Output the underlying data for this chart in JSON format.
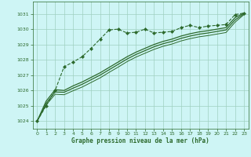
{
  "title": "Graphe pression niveau de la mer (hPa)",
  "background_color": "#cef5f5",
  "grid_color": "#a0d0c0",
  "line_color": "#2d6a2d",
  "xlim": [
    -0.5,
    23.5
  ],
  "ylim": [
    1023.5,
    1031.8
  ],
  "yticks": [
    1024,
    1025,
    1026,
    1027,
    1028,
    1029,
    1030,
    1031
  ],
  "xticks": [
    0,
    1,
    2,
    3,
    4,
    5,
    6,
    7,
    8,
    9,
    10,
    11,
    12,
    13,
    14,
    15,
    16,
    17,
    18,
    19,
    20,
    21,
    22,
    23
  ],
  "series": [
    {
      "x": [
        0,
        1,
        2,
        3,
        4,
        5,
        6,
        7,
        8,
        9,
        10,
        11,
        12,
        13,
        14,
        15,
        16,
        17,
        18,
        19,
        20,
        21,
        22,
        23
      ],
      "y": [
        1024.0,
        1025.0,
        1026.0,
        1027.55,
        1027.85,
        1028.2,
        1028.75,
        1029.35,
        1029.95,
        1030.0,
        1029.75,
        1029.8,
        1030.0,
        1029.75,
        1029.8,
        1029.85,
        1030.1,
        1030.25,
        1030.1,
        1030.2,
        1030.25,
        1030.3,
        1030.95,
        1031.05
      ],
      "marker": "D",
      "markersize": 2.0,
      "linewidth": 0.8,
      "linestyle": "--"
    },
    {
      "x": [
        0,
        1,
        2,
        3,
        4,
        5,
        6,
        7,
        8,
        9,
        10,
        11,
        12,
        13,
        14,
        15,
        16,
        17,
        18,
        19,
        20,
        21,
        22,
        23
      ],
      "y": [
        1024.0,
        1025.3,
        1026.05,
        1026.0,
        1026.3,
        1026.55,
        1026.85,
        1027.15,
        1027.5,
        1027.85,
        1028.2,
        1028.5,
        1028.75,
        1029.0,
        1029.2,
        1029.35,
        1029.55,
        1029.7,
        1029.82,
        1029.9,
        1030.0,
        1030.1,
        1030.75,
        1031.05
      ],
      "marker": null,
      "markersize": 0,
      "linewidth": 0.9,
      "linestyle": "-"
    },
    {
      "x": [
        0,
        1,
        2,
        3,
        4,
        5,
        6,
        7,
        8,
        9,
        10,
        11,
        12,
        13,
        14,
        15,
        16,
        17,
        18,
        19,
        20,
        21,
        22,
        23
      ],
      "y": [
        1024.0,
        1025.15,
        1025.9,
        1025.88,
        1026.15,
        1026.4,
        1026.7,
        1027.0,
        1027.35,
        1027.7,
        1028.05,
        1028.35,
        1028.6,
        1028.85,
        1029.05,
        1029.2,
        1029.4,
        1029.55,
        1029.67,
        1029.75,
        1029.85,
        1029.95,
        1030.6,
        1031.0
      ],
      "marker": null,
      "markersize": 0,
      "linewidth": 0.9,
      "linestyle": "-"
    },
    {
      "x": [
        0,
        1,
        2,
        3,
        4,
        5,
        6,
        7,
        8,
        9,
        10,
        11,
        12,
        13,
        14,
        15,
        16,
        17,
        18,
        19,
        20,
        21,
        22,
        23
      ],
      "y": [
        1024.0,
        1025.05,
        1025.75,
        1025.72,
        1025.98,
        1026.22,
        1026.52,
        1026.82,
        1027.18,
        1027.52,
        1027.88,
        1028.18,
        1028.43,
        1028.68,
        1028.88,
        1029.03,
        1029.23,
        1029.38,
        1029.5,
        1029.58,
        1029.68,
        1029.78,
        1030.45,
        1030.95
      ],
      "marker": null,
      "markersize": 0,
      "linewidth": 0.7,
      "linestyle": "-"
    }
  ]
}
